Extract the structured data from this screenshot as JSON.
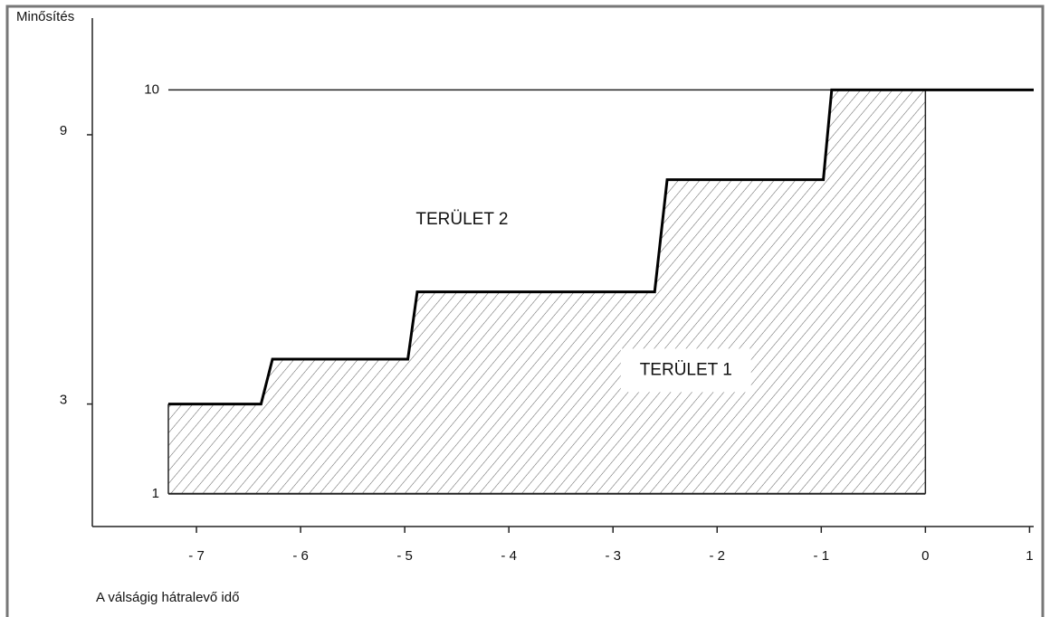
{
  "chart_data": {
    "type": "step-area",
    "y_label": "Minősítés",
    "x_label": "A válságig hátralevő idő",
    "xlim": [
      -8,
      1.04
    ],
    "ylim": [
      0.27,
      11.6
    ],
    "xticks": [
      {
        "value": -7,
        "label": "- 7"
      },
      {
        "value": -6,
        "label": "- 6"
      },
      {
        "value": -5,
        "label": "- 5"
      },
      {
        "value": -4,
        "label": "- 4"
      },
      {
        "value": -3,
        "label": "- 3"
      },
      {
        "value": -2,
        "label": "- 2"
      },
      {
        "value": -1,
        "label": "- 1"
      },
      0,
      1
    ],
    "yticks": [
      3,
      9
    ],
    "region_ymin": 1,
    "region_ymax": 10,
    "region_xmax": 0,
    "series": [
      {
        "color": "#000000",
        "x": [
          -7.27,
          -6.38,
          -6.27,
          -4.97,
          -4.88,
          -2.6,
          -2.48,
          -0.98,
          -0.9,
          1.04
        ],
        "values": [
          3,
          3,
          4,
          4,
          5.5,
          5.5,
          8,
          8,
          10,
          10
        ]
      }
    ],
    "annotations": [
      {
        "text": "TERÜLET 2",
        "x": -4.45,
        "y": 7.1
      },
      {
        "text": "TERÜLET 1",
        "x": -2.3,
        "y": 3.75
      }
    ]
  }
}
